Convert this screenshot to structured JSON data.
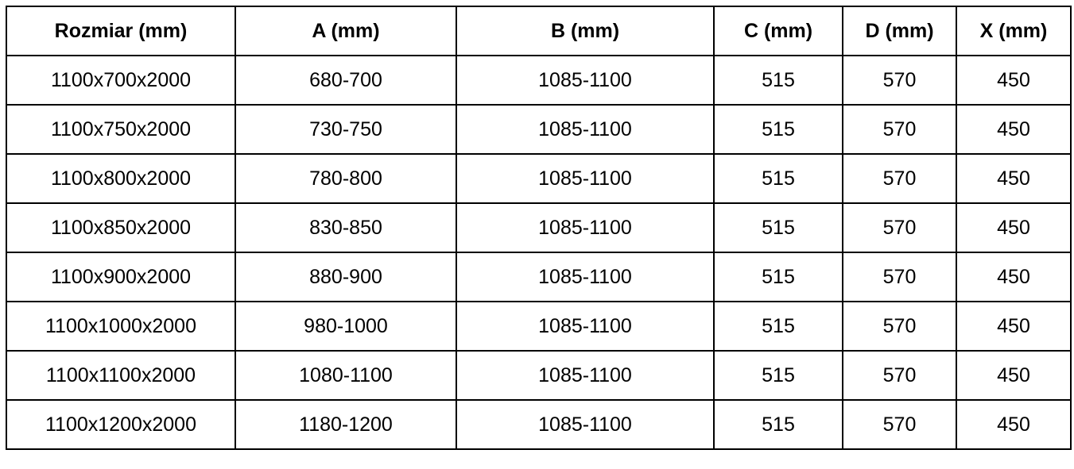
{
  "table": {
    "headers": [
      "Rozmiar (mm)",
      "A (mm)",
      "B (mm)",
      "C (mm)",
      "D (mm)",
      "X (mm)"
    ],
    "rows": [
      [
        "1100x700x2000",
        "680-700",
        "1085-1100",
        "515",
        "570",
        "450"
      ],
      [
        "1100x750x2000",
        "730-750",
        "1085-1100",
        "515",
        "570",
        "450"
      ],
      [
        "1100x800x2000",
        "780-800",
        "1085-1100",
        "515",
        "570",
        "450"
      ],
      [
        "1100x850x2000",
        "830-850",
        "1085-1100",
        "515",
        "570",
        "450"
      ],
      [
        "1100x900x2000",
        "880-900",
        "1085-1100",
        "515",
        "570",
        "450"
      ],
      [
        "1100x1000x2000",
        "980-1000",
        "1085-1100",
        "515",
        "570",
        "450"
      ],
      [
        "1100x1100x2000",
        "1080-1100",
        "1085-1100",
        "515",
        "570",
        "450"
      ],
      [
        "1100x1200x2000",
        "1180-1200",
        "1085-1100",
        "515",
        "570",
        "450"
      ]
    ]
  }
}
